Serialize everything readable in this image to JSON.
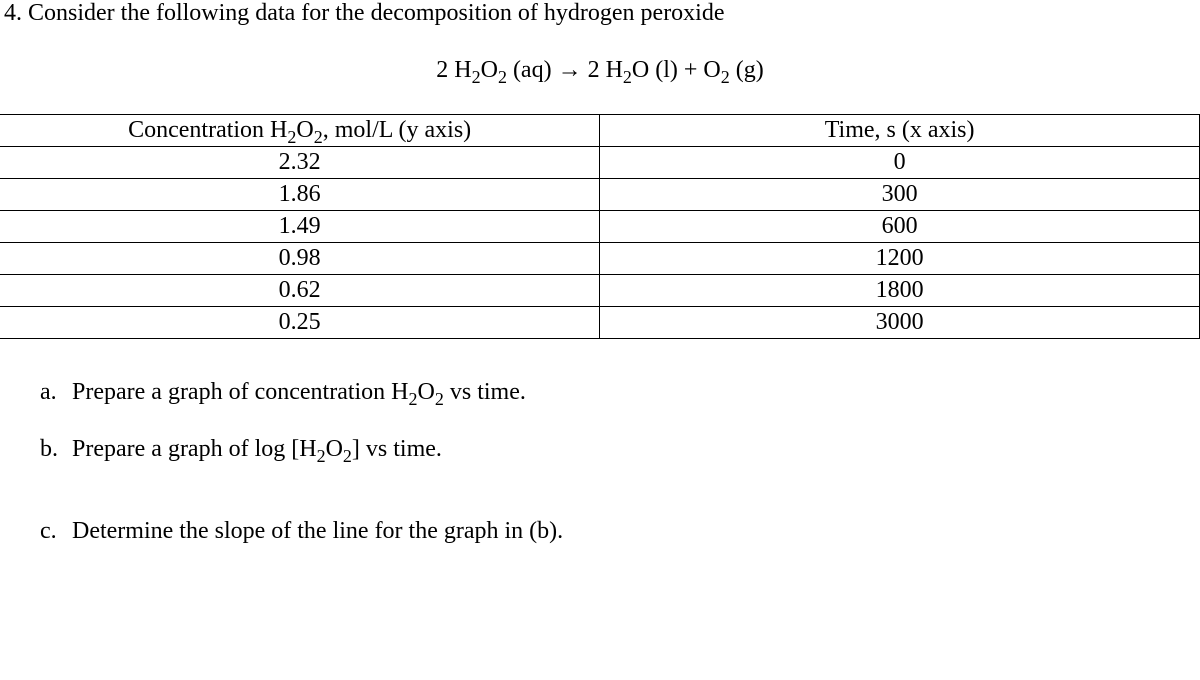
{
  "problem": {
    "number_text": "4. Consider the following data for the decomposition of hydrogen peroxide",
    "equation_html": "2 H<sub>2</sub>O<sub>2</sub> (aq) → 2 H<sub>2</sub>O (l) + O<sub>2</sub> (g)"
  },
  "table": {
    "type": "table",
    "border_color": "#000000",
    "background_color": "#ffffff",
    "text_color": "#000000",
    "font_size_pt": 18,
    "columns": [
      {
        "header_html": "Concentration H<sub>2</sub>O<sub>2</sub>, mol/L (y axis)",
        "align": "center",
        "width_pct": 50
      },
      {
        "header_html": "Time, s (x axis)",
        "align": "center",
        "width_pct": 50
      }
    ],
    "rows": [
      [
        "2.32",
        "0"
      ],
      [
        "1.86",
        "300"
      ],
      [
        "1.49",
        "600"
      ],
      [
        "0.98",
        "1200"
      ],
      [
        "0.62",
        "1800"
      ],
      [
        "0.25",
        "3000"
      ]
    ]
  },
  "subquestions": {
    "a": {
      "letter": "a.",
      "text_html": "Prepare a graph of concentration H<sub>2</sub>O<sub>2</sub> vs time."
    },
    "b": {
      "letter": "b.",
      "text_html": "Prepare a graph of log [H<sub>2</sub>O<sub>2</sub>] vs time."
    },
    "c": {
      "letter": "c.",
      "text_html": "Determine the slope of the line for the graph in (b)."
    }
  }
}
